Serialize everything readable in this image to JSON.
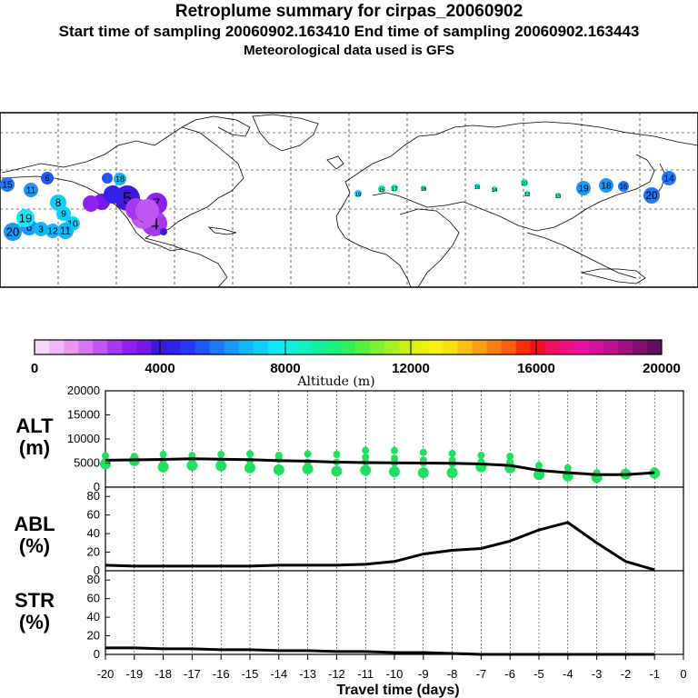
{
  "titles": {
    "line1": "Retroplume summary for cirpas_20060902",
    "line2": "Start time of sampling 20060902.163410     End time of sampling 20060902.163443",
    "line3": "Meteorological data used is GFS"
  },
  "colorbar": {
    "colors": [
      "#f8d8f8",
      "#f0b8f8",
      "#e898f0",
      "#d878f0",
      "#c058f0",
      "#a838f0",
      "#9020f0",
      "#7818e8",
      "#4018d8",
      "#3020e8",
      "#2838f8",
      "#2058f8",
      "#2078f8",
      "#1898f8",
      "#10b8f8",
      "#10d0f8",
      "#10e8f8",
      "#10f0e0",
      "#10f0c0",
      "#10f0a0",
      "#18f080",
      "#30f060",
      "#58f040",
      "#80f030",
      "#a8f020",
      "#c8f010",
      "#e8f010",
      "#f8f010",
      "#f8e010",
      "#f8c010",
      "#f8a010",
      "#f88010",
      "#f86010",
      "#f83010",
      "#f01020",
      "#f01060",
      "#f01080",
      "#e810a0",
      "#d810a0",
      "#c01090",
      "#a01080",
      "#801070",
      "#601060"
    ],
    "ticks": [
      "0",
      "4000",
      "8000",
      "12000",
      "16000",
      "20000"
    ],
    "label": "Altitude (m)"
  },
  "map_points": [
    {
      "label": "15",
      "c": "#2078f8"
    },
    {
      "label": "11",
      "c": "#1898f8"
    },
    {
      "label": "6",
      "c": "#2058f8"
    },
    {
      "label": "7",
      "c": "#9020f0"
    },
    {
      "label": "8",
      "c": "#10d0f8"
    },
    {
      "label": "5",
      "c": "#4018d8"
    },
    {
      "label": "4",
      "c": "#a838f0"
    },
    {
      "label": "3",
      "c": "#c058f0"
    },
    {
      "label": "9",
      "c": "#10d0f8"
    },
    {
      "label": "10",
      "c": "#10d0f8"
    },
    {
      "label": "20",
      "c": "#1898f8"
    },
    {
      "label": "6",
      "c": "#1898f8"
    },
    {
      "label": "3",
      "c": "#10b8f8"
    },
    {
      "label": "12",
      "c": "#10b8f8"
    },
    {
      "label": "11",
      "c": "#10b8f8"
    },
    {
      "label": "19",
      "c": "#10d0f8"
    },
    {
      "label": "15",
      "c": "#10f0c0"
    },
    {
      "label": "17",
      "c": "#10f0c0"
    },
    {
      "label": "16",
      "c": "#10f0c0"
    },
    {
      "label": "16",
      "c": "#10f0c0"
    },
    {
      "label": "14",
      "c": "#10f0c0"
    },
    {
      "label": "20",
      "c": "#10f0c0"
    },
    {
      "label": "13",
      "c": "#10f0c0"
    },
    {
      "label": "13",
      "c": "#10f0c0"
    },
    {
      "label": "19",
      "c": "#1898f8"
    },
    {
      "label": "18",
      "c": "#1898f8"
    },
    {
      "label": "16",
      "c": "#2078f8"
    },
    {
      "label": "14",
      "c": "#2078f8"
    },
    {
      "label": "20",
      "c": "#2078f8"
    },
    {
      "label": "18",
      "c": "#10b8f8"
    },
    {
      "label": "19",
      "c": "#10e8f8"
    }
  ],
  "panel_labels": {
    "alt": [
      "ALT",
      "(m)"
    ],
    "abl": [
      "ABL",
      "(%)"
    ],
    "str": [
      "STR",
      "(%)"
    ],
    "x_axis": "Travel time (days)"
  },
  "chart_data": [
    {
      "type": "line",
      "title": "ALT (m)",
      "x": [
        -20,
        -19,
        -18,
        -17,
        -16,
        -15,
        -14,
        -13,
        -12,
        -11,
        -10,
        -9,
        -8,
        -7,
        -6,
        -5,
        -4,
        -3,
        -2,
        -1
      ],
      "values": [
        5600,
        5650,
        5750,
        5900,
        5800,
        5700,
        5500,
        5400,
        5200,
        5100,
        5050,
        5000,
        4950,
        4800,
        4500,
        3500,
        3000,
        2600,
        2600,
        3000
      ],
      "ylim": [
        0,
        20000
      ],
      "yticks": [
        0,
        5000,
        10000,
        15000,
        20000
      ],
      "scatter": [
        {
          "x": -20,
          "y": [
            6500,
            5500,
            4800
          ]
        },
        {
          "x": -19,
          "y": [
            6400,
            5500
          ]
        },
        {
          "x": -18,
          "y": [
            6800,
            5600,
            4200
          ]
        },
        {
          "x": -17,
          "y": [
            6600,
            5800,
            4500
          ]
        },
        {
          "x": -16,
          "y": [
            6800,
            5500,
            4400
          ]
        },
        {
          "x": -15,
          "y": [
            6900,
            5500,
            4000
          ]
        },
        {
          "x": -14,
          "y": [
            6600,
            5800,
            3600
          ]
        },
        {
          "x": -13,
          "y": [
            6900,
            5200,
            3800
          ]
        },
        {
          "x": -12,
          "y": [
            6800,
            5200,
            3300
          ]
        },
        {
          "x": -11,
          "y": [
            7600,
            6200,
            5200,
            3500
          ]
        },
        {
          "x": -10,
          "y": [
            7600,
            6000,
            5000,
            3200
          ]
        },
        {
          "x": -9,
          "y": [
            7200,
            5600,
            5000,
            3000
          ]
        },
        {
          "x": -8,
          "y": [
            7000,
            5600,
            4800,
            3000
          ]
        },
        {
          "x": -7,
          "y": [
            6600,
            5200,
            4200
          ]
        },
        {
          "x": -6,
          "y": [
            6400,
            5200,
            4000
          ]
        },
        {
          "x": -5,
          "y": [
            4500,
            3500,
            2600
          ]
        },
        {
          "x": -4,
          "y": [
            4000,
            3000,
            2300
          ]
        },
        {
          "x": -3,
          "y": [
            3000,
            2600,
            2000
          ]
        },
        {
          "x": -2,
          "y": [
            3000,
            2700
          ]
        },
        {
          "x": -1,
          "y": [
            3400,
            2900
          ]
        }
      ]
    },
    {
      "type": "line",
      "title": "ABL (%)",
      "x": [
        -20,
        -19,
        -18,
        -17,
        -16,
        -15,
        -14,
        -13,
        -12,
        -11,
        -10,
        -9,
        -8,
        -7,
        -6,
        -5,
        -4,
        -3,
        -2,
        -1
      ],
      "values": [
        6,
        5,
        5,
        5,
        5,
        5,
        6,
        6,
        6,
        7,
        10,
        18,
        22,
        24,
        32,
        44,
        52,
        30,
        10,
        1
      ],
      "ylim": [
        0,
        90
      ],
      "yticks": [
        0,
        20,
        40,
        60,
        80
      ]
    },
    {
      "type": "line",
      "title": "STR (%)",
      "x": [
        -20,
        -19,
        -18,
        -17,
        -16,
        -15,
        -14,
        -13,
        -12,
        -11,
        -10,
        -9,
        -8,
        -7,
        -6,
        -5,
        -4,
        -3,
        -2,
        -1
      ],
      "values": [
        7,
        7,
        6,
        6,
        5,
        5,
        4,
        4,
        3,
        3,
        2,
        2,
        1,
        0,
        0,
        0,
        0,
        0,
        0,
        0
      ],
      "ylim": [
        0,
        90
      ],
      "yticks": [
        0,
        20,
        40,
        60,
        80
      ],
      "xlabel": "Travel time (days)",
      "xticks": [
        "-20",
        "-19",
        "-18",
        "-17",
        "-16",
        "-15",
        "-14",
        "-13",
        "-12",
        "-11",
        "-10",
        "-9",
        "-8",
        "-7",
        "-6",
        "-5",
        "-4",
        "-3",
        "-2",
        "-1",
        "0"
      ]
    }
  ]
}
